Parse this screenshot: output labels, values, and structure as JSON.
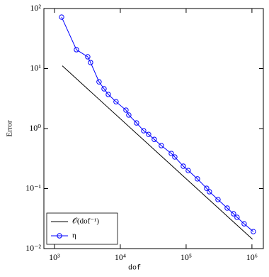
{
  "chart_data": {
    "type": "line",
    "xlabel": "dof",
    "ylabel": "Error",
    "xscale": "log",
    "yscale": "log",
    "xlim": [
      690,
      1490000
    ],
    "ylim": [
      0.01,
      100
    ],
    "xticks": [
      {
        "value": 1000,
        "label": "10³"
      },
      {
        "value": 10000,
        "label": "10⁴"
      },
      {
        "value": 100000,
        "label": "10⁵"
      },
      {
        "value": 1000000,
        "label": "10⁶"
      }
    ],
    "yticks": [
      {
        "value": 0.01,
        "label": "10⁻²"
      },
      {
        "value": 0.1,
        "label": "10⁻¹"
      },
      {
        "value": 1,
        "label": "10⁰"
      },
      {
        "value": 10,
        "label": "10¹"
      },
      {
        "value": 100,
        "label": "10²"
      }
    ],
    "legend": "lower left",
    "series": [
      {
        "name": "𝒪(dof⁻¹)",
        "color": "#000000",
        "marker": "none",
        "x": [
          1313,
          1020000
        ],
        "values": [
          11.1,
          0.0143
        ]
      },
      {
        "name": "η",
        "color": "#0000ff",
        "marker": "circle",
        "x": [
          1282,
          2154,
          3199,
          3532,
          4750,
          5660,
          6570,
          8610,
          12190,
          13450,
          17660,
          22640,
          26900,
          32800,
          42000,
          59500,
          67300,
          90600,
          107700,
          148600,
          205000,
          226000,
          305000,
          421000,
          525000,
          594000,
          762000,
          1050000
        ],
        "values": [
          72,
          20.6,
          15.7,
          12.6,
          6.0,
          4.6,
          3.7,
          2.8,
          2.03,
          1.68,
          1.24,
          0.92,
          0.8,
          0.66,
          0.52,
          0.385,
          0.336,
          0.236,
          0.2,
          0.145,
          0.101,
          0.0885,
          0.0656,
          0.0473,
          0.038,
          0.0332,
          0.0259,
          0.0192
        ]
      }
    ]
  }
}
